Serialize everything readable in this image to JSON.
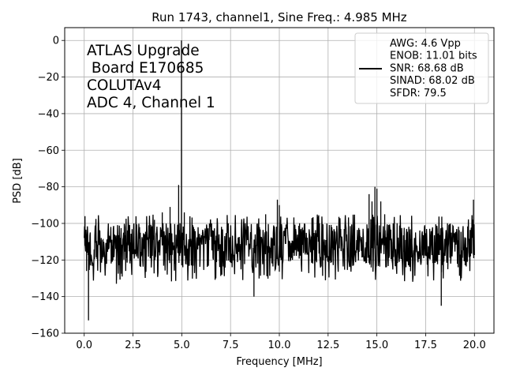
{
  "chart_data": {
    "type": "line",
    "title": "Run 1743, channel1, Sine Freq.: 4.985 MHz",
    "xlabel": "Frequency [MHz]",
    "ylabel": "PSD [dB]",
    "xlim": [
      -1.0,
      21.0
    ],
    "ylim": [
      -160,
      7
    ],
    "xticks": [
      0.0,
      2.5,
      5.0,
      7.5,
      10.0,
      12.5,
      15.0,
      17.5,
      20.0
    ],
    "xtick_labels": [
      "0.0",
      "2.5",
      "5.0",
      "7.5",
      "10.0",
      "12.5",
      "15.0",
      "17.5",
      "20.0"
    ],
    "yticks": [
      0,
      -20,
      -40,
      -60,
      -80,
      -100,
      -120,
      -140,
      -160
    ],
    "ytick_labels": [
      "0",
      "−20",
      "−40",
      "−60",
      "−80",
      "−100",
      "−120",
      "−140",
      "−160"
    ],
    "grid": true,
    "annotation_lines": [
      "ATLAS Upgrade",
      " Board E170685",
      "COLUTAv4",
      "ADC 4, Channel 1"
    ],
    "legend": {
      "position": "top-right",
      "lines": [
        "AWG: 4.6 Vpp",
        "ENOB: 11.01 bits",
        "SNR: 68.68 dB",
        "SINAD: 68.02 dB",
        "SFDR: 79.5"
      ]
    },
    "series": [
      {
        "color": "#000000",
        "x_range": [
          0.0,
          20.0
        ],
        "noise_floor_mean": -112,
        "noise_floor_band": [
          -125,
          -98
        ],
        "peaks": [
          {
            "x": 0.04,
            "y": -96
          },
          {
            "x": 0.12,
            "y": -126
          },
          {
            "x": 0.22,
            "y": -153
          },
          {
            "x": 1.65,
            "y": -133
          },
          {
            "x": 3.6,
            "y": -98
          },
          {
            "x": 4.0,
            "y": -94
          },
          {
            "x": 4.4,
            "y": -91
          },
          {
            "x": 4.985,
            "y": 0
          },
          {
            "x": 4.84,
            "y": -79
          },
          {
            "x": 5.13,
            "y": -94
          },
          {
            "x": 8.7,
            "y": -140
          },
          {
            "x": 9.3,
            "y": -95
          },
          {
            "x": 9.9,
            "y": -87
          },
          {
            "x": 10.0,
            "y": -90
          },
          {
            "x": 14.6,
            "y": -84
          },
          {
            "x": 14.75,
            "y": -88
          },
          {
            "x": 14.9,
            "y": -80
          },
          {
            "x": 15.0,
            "y": -81
          },
          {
            "x": 15.2,
            "y": -88
          },
          {
            "x": 15.4,
            "y": -95
          },
          {
            "x": 18.3,
            "y": -145
          },
          {
            "x": 19.95,
            "y": -87
          }
        ]
      }
    ]
  }
}
